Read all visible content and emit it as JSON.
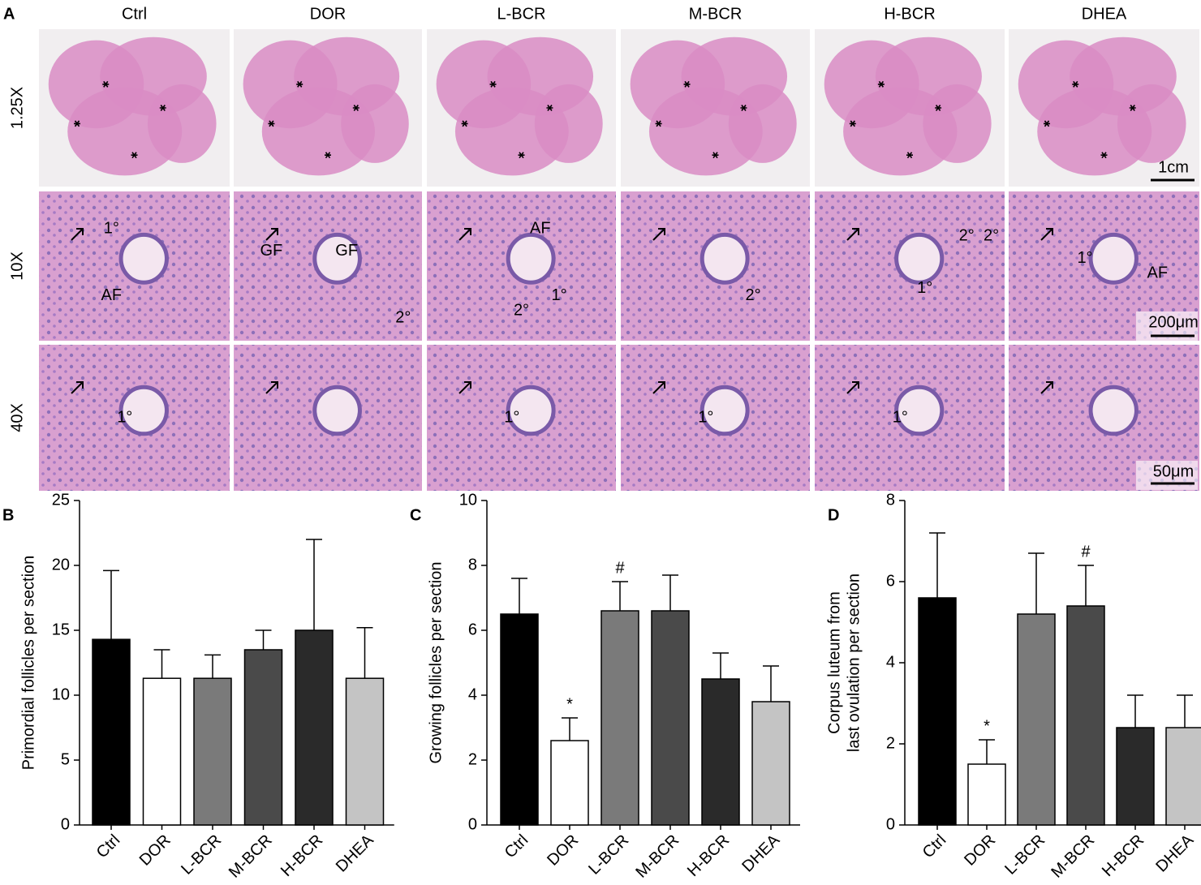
{
  "micrographs": {
    "panel": "A",
    "columns": [
      "Ctrl",
      "DOR",
      "L-BCR",
      "M-BCR",
      "H-BCR",
      "DHEA"
    ],
    "rows": [
      "1.25X",
      "10X",
      "40X"
    ],
    "scale_bars": [
      "1cm",
      "200μm",
      "50μm"
    ],
    "labels_10x": [
      [
        "1°",
        "AF"
      ],
      [
        "GF",
        "GF",
        "2°"
      ],
      [
        "AF",
        "1°",
        "2°"
      ],
      [
        "2°"
      ],
      [
        "2°",
        "2°",
        "1°"
      ],
      [
        "1°",
        "AF"
      ]
    ],
    "labels_40x": [
      [
        "1°"
      ],
      [],
      [
        "1°"
      ],
      [
        "1°"
      ],
      [
        "1°"
      ],
      []
    ]
  },
  "chart_data": [
    {
      "type": "bar",
      "panel": "B",
      "ylabel": [
        "Primordial follicles per section"
      ],
      "categories": [
        "Ctrl",
        "DOR",
        "L-BCR",
        "M-BCR",
        "H-BCR",
        "DHEA"
      ],
      "values": [
        14.3,
        11.3,
        11.3,
        13.5,
        15.0,
        11.3
      ],
      "errors": [
        5.3,
        2.2,
        1.8,
        1.5,
        7.0,
        3.9
      ],
      "markers": [
        null,
        null,
        null,
        null,
        null,
        null
      ],
      "colors": [
        "#000000",
        "#ffffff",
        "#7a7a7a",
        "#4a4a4a",
        "#2a2a2a",
        "#c4c4c4"
      ],
      "ylim": [
        0,
        25
      ],
      "yticks": [
        0,
        5,
        10,
        15,
        20,
        25
      ]
    },
    {
      "type": "bar",
      "panel": "C",
      "ylabel": [
        "Growing follicles per section"
      ],
      "categories": [
        "Ctrl",
        "DOR",
        "L-BCR",
        "M-BCR",
        "H-BCR",
        "DHEA"
      ],
      "values": [
        6.5,
        2.6,
        6.6,
        6.6,
        4.5,
        3.8
      ],
      "errors": [
        1.1,
        0.7,
        0.9,
        1.1,
        0.8,
        1.1
      ],
      "markers": [
        null,
        "*",
        "#",
        null,
        null,
        null
      ],
      "colors": [
        "#000000",
        "#ffffff",
        "#7a7a7a",
        "#4a4a4a",
        "#2a2a2a",
        "#c4c4c4"
      ],
      "ylim": [
        0,
        10
      ],
      "yticks": [
        0,
        2,
        4,
        6,
        8,
        10
      ]
    },
    {
      "type": "bar",
      "panel": "D",
      "ylabel": [
        "Corpus luteum from",
        "last ovulation  per section"
      ],
      "categories": [
        "Ctrl",
        "DOR",
        "L-BCR",
        "M-BCR",
        "H-BCR",
        "DHEA"
      ],
      "values": [
        5.6,
        1.5,
        5.2,
        5.4,
        2.4,
        2.4
      ],
      "errors": [
        1.6,
        0.6,
        1.5,
        1.0,
        0.8,
        0.8
      ],
      "markers": [
        null,
        "*",
        null,
        "#",
        null,
        null
      ],
      "colors": [
        "#000000",
        "#ffffff",
        "#7a7a7a",
        "#4a4a4a",
        "#2a2a2a",
        "#c4c4c4"
      ],
      "ylim": [
        0,
        8
      ],
      "yticks": [
        0,
        2,
        4,
        6,
        8
      ]
    }
  ]
}
